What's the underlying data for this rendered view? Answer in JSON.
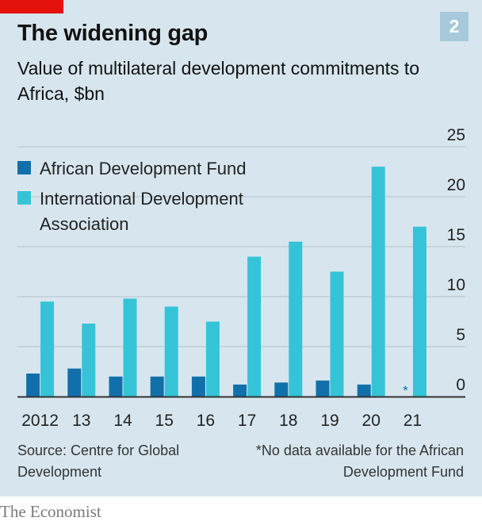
{
  "header": {
    "title": "The widening gap",
    "badge": "2",
    "subtitle": "Value of multilateral development commitments to Africa, $bn"
  },
  "chart_data": {
    "type": "bar",
    "categories": [
      "2012",
      "13",
      "14",
      "15",
      "16",
      "17",
      "18",
      "19",
      "20",
      "21"
    ],
    "series": [
      {
        "name": "African Development Fund",
        "color": "#1170aa",
        "values": [
          2.3,
          2.8,
          2.0,
          2.0,
          2.0,
          1.2,
          1.4,
          1.6,
          1.2,
          null
        ]
      },
      {
        "name": "International Development Association",
        "color": "#35c4d7",
        "values": [
          9.5,
          7.3,
          9.8,
          9.0,
          7.5,
          14.0,
          15.5,
          12.5,
          23.0,
          17.0
        ]
      }
    ],
    "yticks": [
      "0",
      "5",
      "10",
      "15",
      "20",
      "25"
    ],
    "ylim": [
      0,
      25
    ],
    "missing_marker": "*",
    "grid": true,
    "legend_position": "top-left"
  },
  "footer": {
    "source": "Source: Centre for Global Development",
    "note": "*No data available for the African Development Fund",
    "brand": "The Economist"
  }
}
